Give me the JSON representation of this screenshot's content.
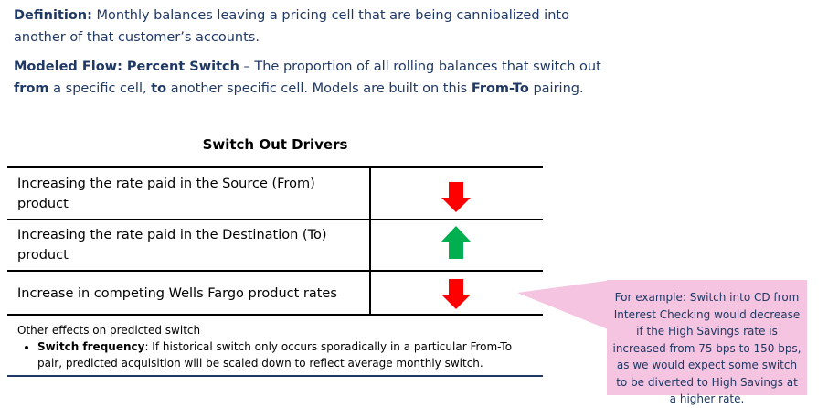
{
  "definition": {
    "label": "Definition:",
    "text": " Monthly balances leaving a pricing cell that are being cannibalized into another of that customer’s accounts."
  },
  "modeled_flow": {
    "label": "Modeled Flow: Percent Switch",
    "text1": " – The proportion of all rolling balances that switch out ",
    "from": "from",
    "text2": " a specific cell, ",
    "to": "to",
    "text3": " another specific cell. Models are built on this ",
    "pairing": "From-To",
    "text4": " pairing."
  },
  "table": {
    "title": "Switch Out Drivers",
    "rows": [
      {
        "label": "Increasing the rate paid in the Source (From) product",
        "direction": "down",
        "color": "#ff0000"
      },
      {
        "label": "Increasing the rate paid in the Destination (To) product",
        "direction": "up",
        "color": "#00b050"
      },
      {
        "label": "Increase in competing Wells Fargo product rates",
        "direction": "down",
        "color": "#ff0000"
      }
    ]
  },
  "other_effects": {
    "heading": "Other effects on predicted switch",
    "bullet_label": "Switch frequency",
    "bullet_text": ": If historical switch only occurs sporadically in a particular From-To pair, predicted acquisition will be scaled down to reflect average monthly switch."
  },
  "callout": {
    "text": "For example: Switch into CD from Interest Checking would decrease if the High Savings rate is increased from 75 bps to 150 bps, as we would expect some switch to be diverted to High Savings at a higher rate.",
    "color": "#f4c4e0"
  },
  "colors": {
    "text_primary": "#1f3864",
    "arrow_down": "#ff0000",
    "arrow_up": "#00b050"
  }
}
